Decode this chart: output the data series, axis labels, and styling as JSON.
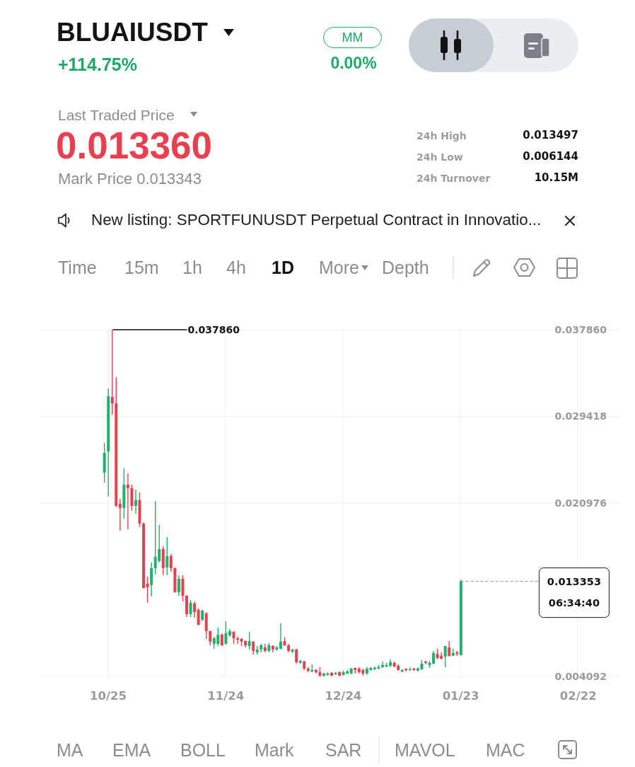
{
  "chart_data": {
    "type": "candlestick",
    "title": "BLUAIUSDT",
    "subtitle": "+114.75%",
    "categories": [
      null,
      null,
      null,
      null,
      null,
      null,
      null,
      null,
      null,
      null,
      null,
      null,
      null,
      null,
      null,
      null,
      null,
      "10/25",
      null,
      null,
      null,
      null,
      null,
      null,
      null,
      null,
      null,
      null,
      null,
      null,
      null,
      null,
      null,
      null,
      null,
      null,
      null,
      null,
      null,
      null,
      null,
      null,
      null,
      null,
      null,
      null,
      null,
      "11/24",
      null,
      null,
      null,
      null,
      null,
      null,
      null,
      null,
      null,
      null,
      null,
      null,
      null,
      null,
      null,
      null,
      null,
      null,
      null,
      null,
      null,
      null,
      null,
      null,
      null,
      null,
      null,
      null,
      null,
      "12/24",
      null,
      null,
      null,
      null,
      null,
      null,
      null,
      null,
      null,
      null,
      null,
      null,
      null,
      null,
      null,
      null,
      null,
      null,
      null,
      null,
      null,
      null,
      null,
      null,
      null,
      null,
      null,
      null,
      null,
      "01/23",
      null,
      null,
      null,
      null,
      null,
      null,
      null,
      null,
      null,
      null,
      null,
      null,
      null,
      null,
      null,
      null,
      null,
      null,
      null,
      null,
      null,
      null,
      null,
      null,
      null,
      null,
      null,
      null,
      null,
      "02/22",
      null,
      null,
      null,
      null,
      null,
      null,
      null,
      null,
      null,
      null
    ],
    "ohlc": [
      null,
      null,
      null,
      null,
      null,
      null,
      null,
      null,
      null,
      null,
      null,
      null,
      null,
      null,
      null,
      null,
      [
        0.02394,
        0.02684,
        0.02298,
        0.02587
      ],
      [
        0.02601,
        0.03214,
        0.0216,
        0.03138
      ],
      [
        0.03131,
        0.03786,
        0.02959,
        0.03069
      ],
      [
        0.03069,
        0.03324,
        0.0206,
        0.0207
      ],
      [
        0.02091,
        0.02139,
        0.01829,
        0.0205
      ],
      [
        0.0205,
        0.02436,
        0.01946,
        0.02277
      ],
      [
        0.02277,
        0.02387,
        0.01843,
        0.02243
      ],
      [
        0.02243,
        0.02277,
        0.02022,
        0.0207
      ],
      [
        0.0207,
        0.02229,
        0.01995,
        0.02126
      ],
      [
        0.02126,
        0.02201,
        0.01864,
        0.01898
      ],
      [
        0.01898,
        0.0191,
        0.01265,
        0.01271
      ],
      [
        0.01313,
        0.01381,
        0.01127,
        0.01278
      ],
      [
        0.01299,
        0.01519,
        0.01189,
        0.01464
      ],
      [
        0.01464,
        0.02119,
        0.01402,
        0.01574
      ],
      [
        0.01533,
        0.01884,
        0.01519,
        0.0165
      ],
      [
        0.0165,
        0.01678,
        0.01395,
        0.01464
      ],
      [
        0.01471,
        0.01767,
        0.01395,
        0.01581
      ],
      [
        0.01581,
        0.01602,
        0.0143,
        0.01464
      ],
      [
        0.01464,
        0.0147,
        0.01225,
        0.0123
      ],
      [
        0.0123,
        0.01395,
        0.01195,
        0.01361
      ],
      [
        0.01361,
        0.01395,
        0.0114,
        0.01195
      ],
      [
        0.01195,
        0.012,
        0.00989,
        0.01016
      ],
      [
        0.01016,
        0.01154,
        0.00989,
        0.01127
      ],
      [
        0.0112,
        0.0114,
        0.00982,
        0.01037
      ],
      [
        0.01058,
        0.0107,
        0.00905,
        0.00913
      ],
      [
        0.00961,
        0.01058,
        0.00948,
        0.01051
      ],
      [
        0.01023,
        0.01037,
        0.00775,
        0.00851
      ],
      [
        0.00851,
        0.00855,
        0.00713,
        0.00748
      ],
      [
        0.00727,
        0.00796,
        0.00679,
        0.00782
      ],
      [
        0.00727,
        0.00885,
        0.00706,
        0.00816
      ],
      [
        0.00816,
        0.0083,
        0.00706,
        0.00713
      ],
      [
        0.00727,
        0.00947,
        0.0072,
        0.0083
      ],
      [
        0.0081,
        0.00872,
        0.00796,
        0.00851
      ],
      [
        0.00844,
        0.00851,
        0.00727,
        0.00782
      ],
      [
        0.00782,
        0.00796,
        0.00727,
        0.00768
      ],
      [
        0.00775,
        0.00782,
        0.00706,
        0.00748
      ],
      [
        0.00754,
        0.00761,
        0.00692,
        0.00713
      ],
      [
        0.00706,
        0.00844,
        0.00672,
        0.00754
      ],
      [
        0.00748,
        0.00754,
        0.00624,
        0.00658
      ],
      [
        0.00644,
        0.00706,
        0.00624,
        0.00672
      ],
      [
        0.00672,
        0.00727,
        0.00644,
        0.00713
      ],
      [
        0.00692,
        0.00727,
        0.00644,
        0.00658
      ],
      [
        0.00658,
        0.00734,
        0.00644,
        0.00713
      ],
      [
        0.00706,
        0.00713,
        0.00644,
        0.00672
      ],
      [
        0.00672,
        0.00706,
        0.00658,
        0.00692
      ],
      [
        0.00679,
        0.00927,
        0.00672,
        0.00748
      ],
      [
        0.00754,
        0.00789,
        0.00706,
        0.00713
      ],
      [
        0.00713,
        0.00727,
        0.00644,
        0.00658
      ],
      [
        0.00651,
        0.00679,
        0.00637,
        0.00672
      ],
      [
        0.00672,
        0.00679,
        0.00534,
        0.00548
      ],
      [
        0.00541,
        0.00569,
        0.00534,
        0.00562
      ],
      [
        0.00555,
        0.00562,
        0.00472,
        0.00486
      ],
      [
        0.00486,
        0.005,
        0.00451,
        0.00465
      ],
      [
        0.00458,
        0.00527,
        0.00451,
        0.00472
      ],
      [
        0.00472,
        0.00479,
        0.00438,
        0.00451
      ],
      [
        0.00451,
        0.005,
        0.004092,
        0.00415
      ],
      [
        0.00415,
        0.00444,
        0.00411,
        0.00438
      ],
      [
        0.00424,
        0.00451,
        0.00417,
        0.00438
      ],
      [
        0.00444,
        0.00451,
        0.00411,
        0.00417
      ],
      [
        0.00431,
        0.00451,
        0.00424,
        0.00444
      ],
      [
        0.00451,
        0.00458,
        0.00411,
        0.00417
      ],
      [
        0.00424,
        0.00465,
        0.00417,
        0.00451
      ],
      [
        0.00438,
        0.00472,
        0.00431,
        0.00458
      ],
      [
        0.00438,
        0.00493,
        0.00431,
        0.00486
      ],
      [
        0.00493,
        0.00493,
        0.00438,
        0.00472
      ],
      [
        0.00486,
        0.005,
        0.00438,
        0.00451
      ],
      [
        0.00472,
        0.00486,
        0.00417,
        0.00438
      ],
      [
        0.00438,
        0.005,
        0.00424,
        0.00486
      ],
      [
        0.00472,
        0.005,
        0.00465,
        0.00493
      ],
      [
        0.00479,
        0.00506,
        0.00472,
        0.00493
      ],
      [
        0.00486,
        0.0052,
        0.00479,
        0.005
      ],
      [
        0.005,
        0.00555,
        0.00493,
        0.0052
      ],
      [
        0.00506,
        0.00541,
        0.005,
        0.0052
      ],
      [
        0.00513,
        0.00575,
        0.005,
        0.00548
      ],
      [
        0.00541,
        0.00555,
        0.005,
        0.00506
      ],
      [
        0.00513,
        0.00527,
        0.00465,
        0.00472
      ],
      [
        0.00458,
        0.00479,
        0.00451,
        0.00472
      ],
      [
        0.00486,
        0.00486,
        0.00458,
        0.00472
      ],
      [
        0.00472,
        0.005,
        0.00465,
        0.00479
      ],
      [
        0.00486,
        0.00493,
        0.00465,
        0.00472
      ],
      [
        0.00465,
        0.005,
        0.00458,
        0.00486
      ],
      [
        0.00479,
        0.00569,
        0.00472,
        0.00534
      ],
      [
        0.00555,
        0.00562,
        0.00527,
        0.00541
      ],
      [
        0.0052,
        0.00562,
        0.00493,
        0.00541
      ],
      [
        0.00534,
        0.00658,
        0.00527,
        0.00637
      ],
      [
        0.0063,
        0.00679,
        0.00575,
        0.00589
      ],
      [
        0.0061,
        0.00644,
        0.00575,
        0.00582
      ],
      [
        0.00603,
        0.00706,
        0.005,
        0.00706
      ],
      [
        0.00692,
        0.00754,
        0.00603,
        0.0061
      ],
      [
        0.0061,
        0.00679,
        0.0061,
        0.00637
      ],
      [
        0.00644,
        0.00658,
        0.0061,
        0.0063
      ],
      [
        0.00617,
        0.0135,
        0.00614,
        0.013353
      ],
      null,
      null,
      null,
      null,
      null,
      null,
      null,
      null,
      null,
      null,
      null,
      null,
      null,
      null,
      null,
      null,
      null,
      null,
      null,
      null,
      null,
      null,
      null,
      null,
      null,
      null,
      null,
      null,
      null,
      null,
      null,
      null,
      null,
      null,
      null,
      null,
      null,
      null,
      null,
      null
    ],
    "colors": [
      null,
      null,
      null,
      null,
      null,
      null,
      null,
      null,
      null,
      null,
      null,
      null,
      null,
      null,
      null,
      null,
      "#20b26c",
      "#20b26c",
      "#e5424f",
      "#e5424f",
      "#e5424f",
      "#20b26c",
      "#e5424f",
      "#e5424f",
      "#20b26c",
      "#e5424f",
      "#e5424f",
      "#e5424f",
      "#20b26c",
      "#20b26c",
      "#20b26c",
      "#e5424f",
      "#20b26c",
      "#e5424f",
      "#e5424f",
      "#20b26c",
      "#e5424f",
      "#e5424f",
      "#20b26c",
      "#e5424f",
      "#e5424f",
      "#20b26c",
      "#e5424f",
      "#e5424f",
      "#20b26c",
      "#20b26c",
      "#e5424f",
      "#20b26c",
      "#20b26c",
      "#e5424f",
      "#e5424f",
      "#e5424f",
      "#e5424f",
      "#20b26c",
      "#e5424f",
      "#20b26c",
      "#20b26c",
      "#e5424f",
      "#20b26c",
      "#e5424f",
      "#20b26c",
      "#20b26c",
      "#e5424f",
      "#e5424f",
      "#20b26c",
      "#e5424f",
      "#20b26c",
      "#e5424f",
      "#e5424f",
      "#20b26c",
      "#e5424f",
      "#e5424f",
      "#20b26c",
      "#20b26c",
      "#e5424f",
      "#20b26c",
      "#e5424f",
      "#20b26c",
      "#20b26c",
      "#20b26c",
      "#e5424f",
      "#e5424f",
      "#e5424f",
      "#20b26c",
      "#20b26c",
      "#20b26c",
      "#20b26c",
      "#20b26c",
      "#20b26c",
      "#20b26c",
      "#e5424f",
      "#e5424f",
      "#20b26c",
      "#e5424f",
      "#20b26c",
      "#e5424f",
      "#20b26c",
      "#20b26c",
      "#e5424f",
      "#20b26c",
      "#20b26c",
      "#e5424f",
      "#e5424f",
      "#20b26c",
      "#e5424f",
      "#20b26c",
      "#e5424f",
      "#20b26c",
      null,
      null,
      null,
      null,
      null,
      null,
      null,
      null,
      null,
      null,
      null,
      null,
      null,
      null,
      null,
      null,
      null,
      null,
      null,
      null,
      null,
      null,
      null,
      null,
      null,
      null,
      null,
      null,
      null,
      null,
      null,
      null,
      null,
      null,
      null,
      null,
      null,
      null,
      null,
      null
    ],
    "ylim": [
      0.004092,
      0.03786
    ],
    "yticks": [
      0.004092,
      0.020976,
      0.029418,
      {
        "value": 0.03786,
        "label": "0.037860"
      }
    ],
    "grid": true,
    "ref_lines": [
      {
        "axis": "y",
        "value": 0.013353,
        "label": "0.013353",
        "color": "#8f8f8f",
        "line_style": "dashed"
      }
    ],
    "annotations": [
      "MM",
      "0.00%",
      "Last Traded Price",
      "0.013360",
      "Mark Price 0.013343",
      "24h High",
      "0.013497",
      "24h Low",
      "0.006144",
      "24h Turnover",
      "10.15M",
      "New listing: SPORTFUNUSDT Perpetual Contract in Innovatio...",
      "Time",
      "15m",
      "1h",
      "4h",
      "1D",
      "More",
      "Depth",
      "MA",
      "EMA",
      "BOLL",
      "Mark",
      "SAR",
      "MAVOL",
      "MAC",
      "0.037860",
      "06:34:40"
    ]
  }
}
